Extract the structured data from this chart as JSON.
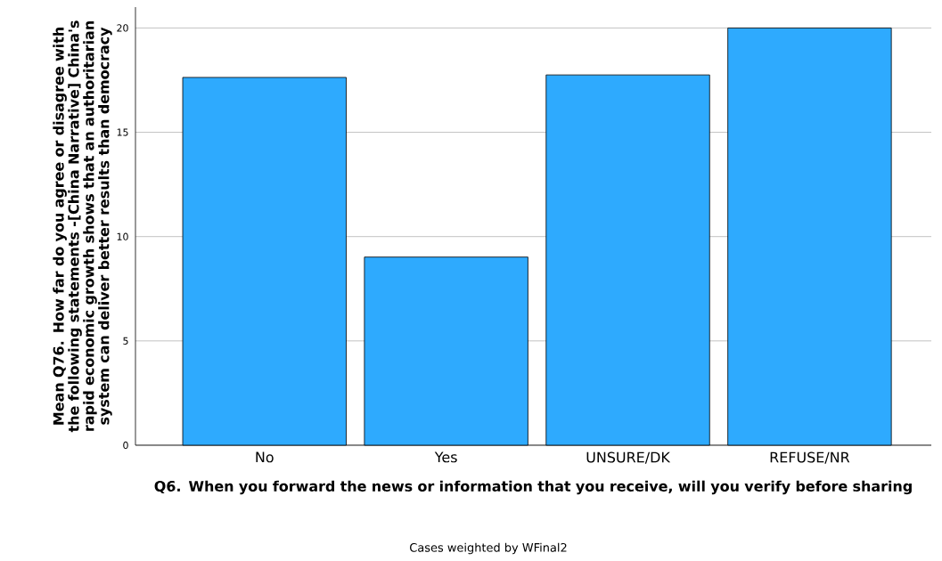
{
  "chart_data": {
    "type": "bar",
    "xlabel": "Q6. When you forward the news or information that you receive, will you verify before sharing",
    "ylabel": "Mean Q76. How far do you agree or disagree with the following statements  -[China Narrative] China's rapid economic growth shows that an authoritarian system can deliver better results than democracy",
    "categories": [
      "No",
      "Yes",
      "UNSURE/DK",
      "REFUSE/NR"
    ],
    "values": [
      17.63,
      9.02,
      17.75,
      20.0
    ],
    "color": "#2eaafe",
    "ylim": [
      0,
      21
    ],
    "yticks": [
      0,
      5,
      10,
      15,
      20
    ],
    "grid": "y",
    "annotations": [
      "Cases weighted by WFinal2"
    ]
  }
}
